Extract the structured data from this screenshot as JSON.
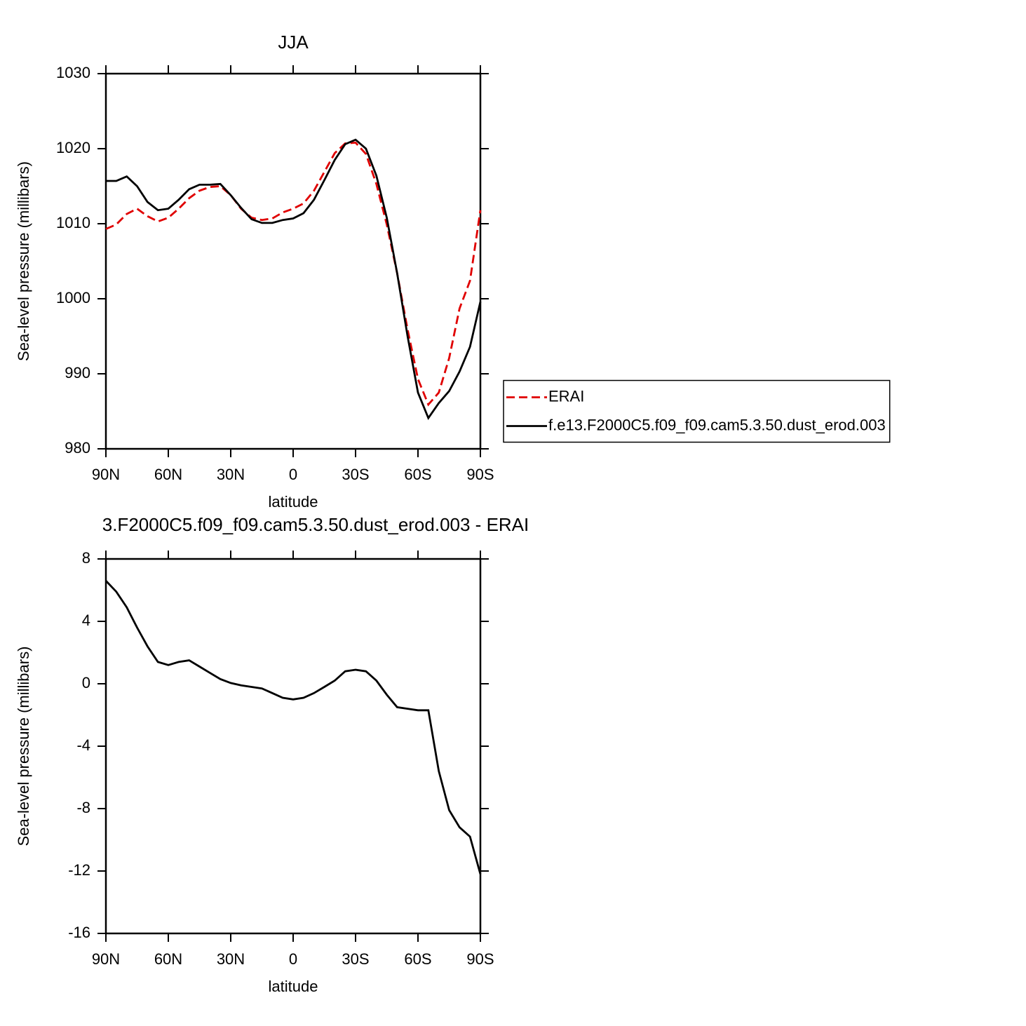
{
  "chart_data": [
    {
      "type": "line",
      "title": "JJA",
      "xlabel": "latitude",
      "ylabel": "Sea-level pressure (millibars)",
      "xlim": [
        90,
        -90
      ],
      "xticks": [
        {
          "value": 90,
          "label": "90N"
        },
        {
          "value": 60,
          "label": "60N"
        },
        {
          "value": 30,
          "label": "30N"
        },
        0,
        {
          "value": -30,
          "label": "30S"
        },
        {
          "value": -60,
          "label": "60S"
        },
        {
          "value": -90,
          "label": "90S"
        }
      ],
      "ylim": [
        980,
        1030
      ],
      "yticks": [
        980,
        990,
        1000,
        1010,
        1020,
        1030
      ],
      "x": [
        90,
        85,
        80,
        75,
        70,
        65,
        60,
        55,
        50,
        45,
        40,
        35,
        30,
        25,
        20,
        15,
        10,
        5,
        0,
        -5,
        -10,
        -15,
        -20,
        -25,
        -30,
        -35,
        -40,
        -45,
        -50,
        -55,
        -60,
        -65,
        -70,
        -75,
        -80,
        -85,
        -90
      ],
      "legend": "right",
      "series": [
        {
          "name": "ERAI",
          "color": "#e00000",
          "line_style": "dashed",
          "values": [
            1009.3,
            1009.9,
            1011.3,
            1012.0,
            1011.0,
            1010.3,
            1010.8,
            1012.0,
            1013.4,
            1014.4,
            1014.9,
            1015.0,
            1013.8,
            1012.0,
            1010.8,
            1010.5,
            1010.7,
            1011.5,
            1012.0,
            1012.7,
            1014.4,
            1016.9,
            1019.4,
            1020.7,
            1020.8,
            1019.3,
            1015.3,
            1009.9,
            1003.4,
            995.9,
            989.3,
            985.9,
            987.5,
            992.1,
            998.7,
            1002.4,
            1011.8
          ]
        },
        {
          "name": "f.e13.F2000C5.f09_f09.cam5.3.50.dust_erod.003",
          "color": "#000000",
          "line_style": "solid",
          "values": [
            1015.7,
            1015.7,
            1016.3,
            1015.0,
            1012.9,
            1011.8,
            1012.0,
            1013.2,
            1014.6,
            1015.2,
            1015.2,
            1015.3,
            1013.8,
            1012.1,
            1010.6,
            1010.1,
            1010.1,
            1010.5,
            1010.7,
            1011.4,
            1013.2,
            1015.8,
            1018.5,
            1020.6,
            1021.2,
            1020.0,
            1016.4,
            1010.8,
            1003.4,
            995.0,
            987.5,
            984.1,
            986.1,
            987.7,
            990.3,
            993.6,
            999.6
          ]
        }
      ]
    },
    {
      "type": "line",
      "title": "3.F2000C5.f09_f09.cam5.3.50.dust_erod.003 - ERAI",
      "xlabel": "latitude",
      "ylabel": "Sea-level pressure (millibars)",
      "xlim": [
        90,
        -90
      ],
      "xticks": [
        {
          "value": 90,
          "label": "90N"
        },
        {
          "value": 60,
          "label": "60N"
        },
        {
          "value": 30,
          "label": "30N"
        },
        0,
        {
          "value": -30,
          "label": "30S"
        },
        {
          "value": -60,
          "label": "60S"
        },
        {
          "value": -90,
          "label": "90S"
        }
      ],
      "ylim": [
        -16,
        8
      ],
      "yticks": [
        -16,
        -12,
        -8,
        -4,
        0,
        4,
        8
      ],
      "x": [
        90,
        85,
        80,
        75,
        70,
        65,
        60,
        55,
        50,
        45,
        40,
        35,
        30,
        25,
        20,
        15,
        10,
        5,
        0,
        -5,
        -10,
        -15,
        -20,
        -25,
        -30,
        -35,
        -40,
        -45,
        -50,
        -55,
        -60,
        -65,
        -70,
        -75,
        -80,
        -85,
        -90
      ],
      "series": [
        {
          "color": "#000000",
          "line_style": "solid",
          "values": [
            6.6,
            5.9,
            4.9,
            3.6,
            2.4,
            1.4,
            1.2,
            1.4,
            1.5,
            1.1,
            0.7,
            0.3,
            0.05,
            -0.1,
            -0.2,
            -0.3,
            -0.6,
            -0.9,
            -1.0,
            -0.9,
            -0.6,
            -0.2,
            0.2,
            0.8,
            0.9,
            0.8,
            0.2,
            -0.7,
            -1.5,
            -1.6,
            -1.7,
            -1.7,
            -5.6,
            -8.1,
            -9.2,
            -9.8,
            -12.2
          ]
        }
      ]
    }
  ]
}
